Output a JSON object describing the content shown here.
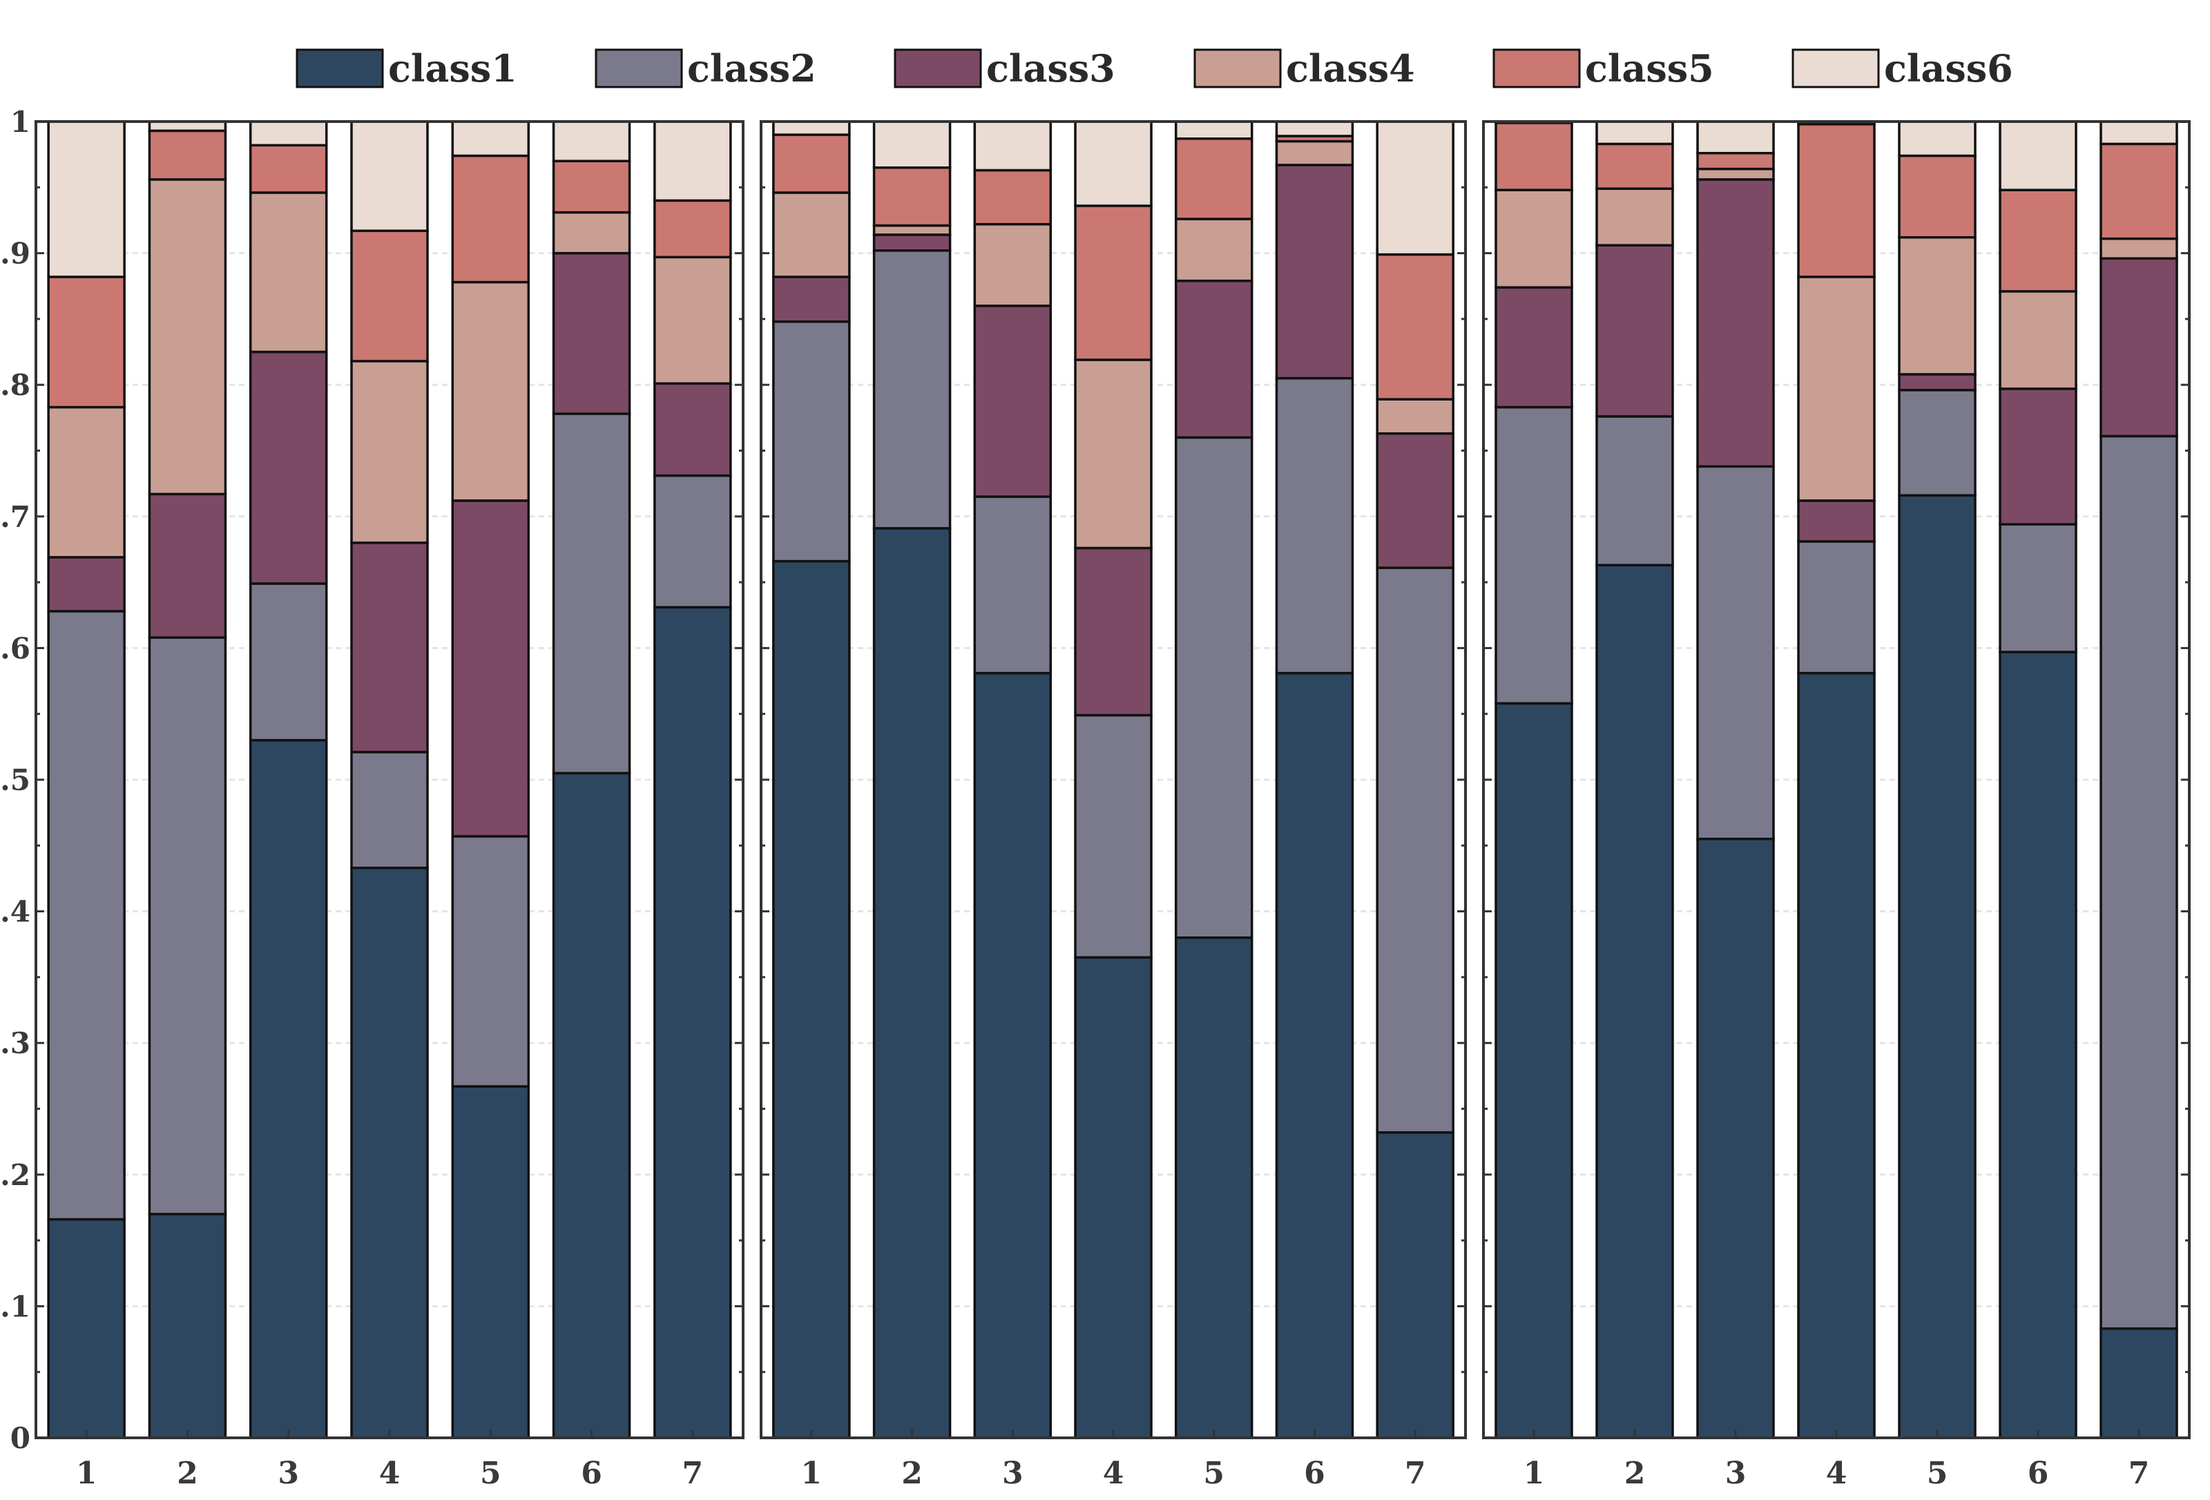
{
  "chart_data": {
    "type": "bar",
    "stacked": true,
    "panels": 3,
    "categories": [
      "1",
      "2",
      "3",
      "4",
      "5",
      "6",
      "7"
    ],
    "ylim": [
      0,
      1
    ],
    "yticks": [
      "0",
      "0.1",
      "0.2",
      "0.3",
      "0.4",
      "0.5",
      "0.6",
      "0.7",
      "0.8",
      "0.9",
      "1"
    ],
    "grid": true,
    "legend_position": "top",
    "series_names": [
      "class1",
      "class2",
      "class3",
      "class4",
      "class5",
      "class6"
    ],
    "colors": [
      "#2e4760",
      "#7a7a8c",
      "#7d4a65",
      "#c99f94",
      "#cb7872",
      "#eadbd3"
    ],
    "cumulative_tops": [
      [
        [
          0.166,
          0.628,
          0.669,
          0.783,
          0.882,
          1.0
        ],
        [
          0.17,
          0.608,
          0.717,
          0.956,
          0.993,
          1.0
        ],
        [
          0.53,
          0.649,
          0.825,
          0.946,
          0.982,
          1.0
        ],
        [
          0.433,
          0.521,
          0.68,
          0.818,
          0.917,
          1.0
        ],
        [
          0.267,
          0.457,
          0.712,
          0.878,
          0.974,
          1.0
        ],
        [
          0.505,
          0.778,
          0.9,
          0.931,
          0.97,
          1.0
        ],
        [
          0.631,
          0.731,
          0.801,
          0.897,
          0.94,
          1.0
        ]
      ],
      [
        [
          0.666,
          0.848,
          0.882,
          0.946,
          0.99,
          1.0
        ],
        [
          0.691,
          0.902,
          0.914,
          0.921,
          0.965,
          1.0
        ],
        [
          0.581,
          0.715,
          0.86,
          0.922,
          0.963,
          1.0
        ],
        [
          0.365,
          0.549,
          0.676,
          0.819,
          0.936,
          1.0
        ],
        [
          0.38,
          0.76,
          0.879,
          0.926,
          0.987,
          1.0
        ],
        [
          0.581,
          0.805,
          0.967,
          0.985,
          0.989,
          1.0
        ],
        [
          0.232,
          0.661,
          0.763,
          0.789,
          0.899,
          1.0
        ]
      ],
      [
        [
          0.558,
          0.783,
          0.874,
          0.948,
          0.999,
          1.0
        ],
        [
          0.663,
          0.776,
          0.906,
          0.949,
          0.983,
          1.0
        ],
        [
          0.455,
          0.738,
          0.956,
          0.964,
          0.976,
          1.0
        ],
        [
          0.581,
          0.681,
          0.712,
          0.882,
          0.998,
          1.0
        ],
        [
          0.716,
          0.796,
          0.808,
          0.912,
          0.974,
          1.0
        ],
        [
          0.597,
          0.694,
          0.797,
          0.871,
          0.948,
          1.0
        ],
        [
          0.083,
          0.761,
          0.896,
          0.911,
          0.983,
          1.0
        ]
      ]
    ]
  }
}
